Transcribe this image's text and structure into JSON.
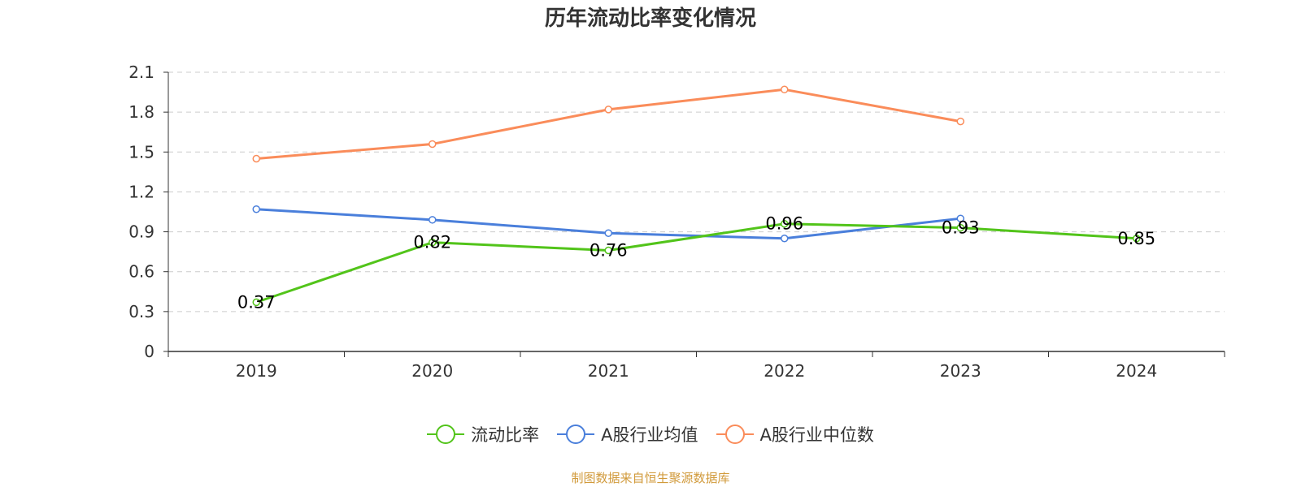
{
  "colors": {
    "current_ratio": "#52c41a",
    "industry_avg": "#4a7fdb",
    "industry_median": "#fa8c5a",
    "axis": "#333333",
    "grid": "#cccccc",
    "source": "#d19a3b"
  },
  "chart_data": {
    "type": "line",
    "title": "历年流动比率变化情况",
    "categories": [
      "2019",
      "2020",
      "2021",
      "2022",
      "2023",
      "2024"
    ],
    "y_ticks": [
      "0",
      "0.3",
      "0.6",
      "0.9",
      "1.2",
      "1.5",
      "1.8",
      "2.1"
    ],
    "ylim": [
      0,
      2.1
    ],
    "grid": true,
    "legend_position": "bottom",
    "series": [
      {
        "name": "流动比率",
        "color_key": "current_ratio",
        "values": [
          0.37,
          0.82,
          0.76,
          0.96,
          0.93,
          0.85
        ],
        "labels": [
          "0.37",
          "0.82",
          "0.76",
          "0.96",
          "0.93",
          "0.85"
        ]
      },
      {
        "name": "A股行业均值",
        "color_key": "industry_avg",
        "values": [
          1.07,
          0.99,
          0.89,
          0.85,
          1.0,
          null
        ]
      },
      {
        "name": "A股行业中位数",
        "color_key": "industry_median",
        "values": [
          1.45,
          1.56,
          1.82,
          1.97,
          1.73,
          null
        ]
      }
    ]
  },
  "legend": {
    "items": [
      "流动比率",
      "A股行业均值",
      "A股行业中位数"
    ]
  },
  "source_note": "制图数据来自恒生聚源数据库"
}
